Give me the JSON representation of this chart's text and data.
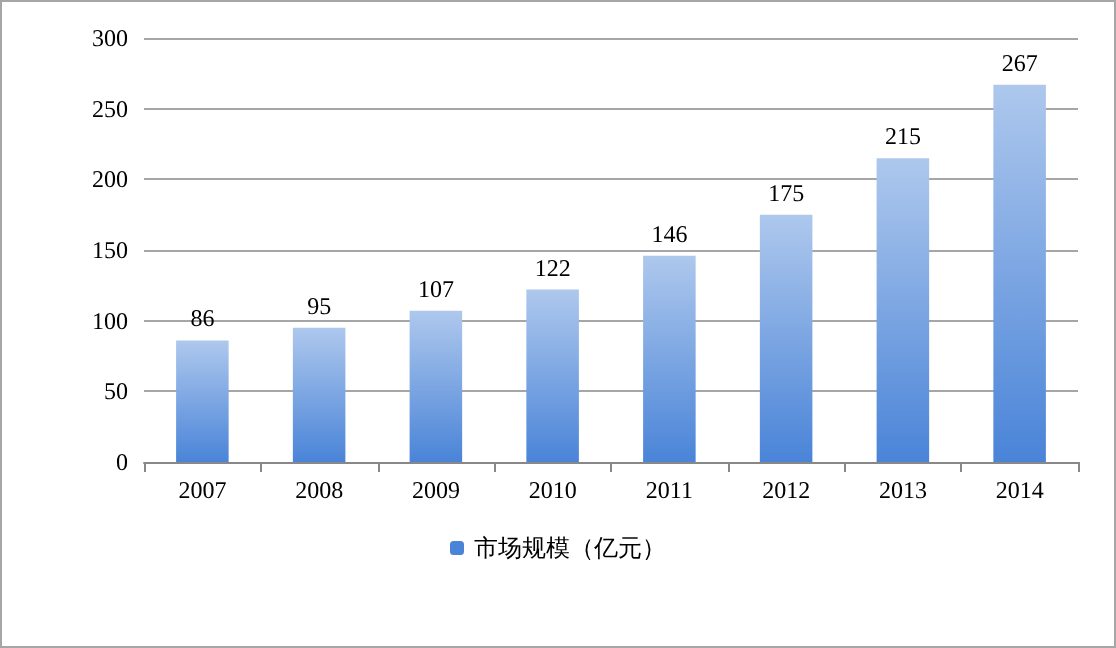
{
  "chart_data": {
    "type": "bar",
    "categories": [
      "2007",
      "2008",
      "2009",
      "2010",
      "2011",
      "2012",
      "2013",
      "2014"
    ],
    "series": [
      {
        "name": "市场规模（亿元）",
        "color": "#4a84d8",
        "values": [
          86,
          95,
          107,
          122,
          146,
          175,
          215,
          267
        ]
      }
    ],
    "ylim": [
      0,
      300
    ],
    "yticks": [
      0,
      50,
      100,
      150,
      200,
      250,
      300
    ],
    "grid": "y",
    "legend": "bottom",
    "data_labels": true
  }
}
